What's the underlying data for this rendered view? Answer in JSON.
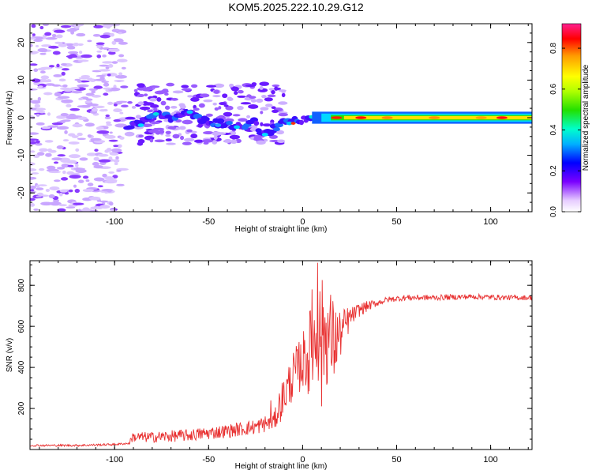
{
  "title": "KOM5.2025.222.10.29.G12",
  "chart_data": [
    {
      "type": "heatmap",
      "xlabel": "Height of straight line (km)",
      "ylabel": "Frequency (Hz)",
      "xlim": [
        -145,
        122
      ],
      "ylim": [
        -25,
        25
      ],
      "xticks": [
        -100,
        -50,
        0,
        50,
        100
      ],
      "yticks": [
        -20,
        -10,
        0,
        10,
        20
      ],
      "colorbar": {
        "label": "Normalized spectral amplitude",
        "range": [
          0,
          0.92
        ],
        "ticks": [
          "0.0",
          "0.2",
          "0.4",
          "0.6",
          "0.8"
        ],
        "tick_values": [
          0,
          0.2,
          0.4,
          0.6,
          0.8
        ]
      },
      "ridge": [
        {
          "x": -93,
          "y": -2
        },
        {
          "x": -85,
          "y": -1
        },
        {
          "x": -78,
          "y": 1
        },
        {
          "x": -70,
          "y": 0
        },
        {
          "x": -62,
          "y": 2
        },
        {
          "x": -55,
          "y": 0
        },
        {
          "x": -50,
          "y": -1
        },
        {
          "x": -45,
          "y": -1.5
        },
        {
          "x": -38,
          "y": -2
        },
        {
          "x": -32,
          "y": -2.5
        },
        {
          "x": -26,
          "y": -1
        },
        {
          "x": -22,
          "y": -4.5
        },
        {
          "x": -18,
          "y": -4
        },
        {
          "x": -13,
          "y": -2
        },
        {
          "x": -8,
          "y": -1
        },
        {
          "x": -2,
          "y": -1
        },
        {
          "x": 3,
          "y": 0
        },
        {
          "x": 10,
          "y": 0
        },
        {
          "x": 20,
          "y": 0
        },
        {
          "x": 40,
          "y": 0
        },
        {
          "x": 70,
          "y": 0
        },
        {
          "x": 100,
          "y": 0
        },
        {
          "x": 122,
          "y": 0
        }
      ]
    },
    {
      "type": "line",
      "xlabel": "Height of straight line (km)",
      "ylabel": "SNR (v/v)",
      "xlim": [
        -145,
        122
      ],
      "ylim": [
        0,
        920
      ],
      "xticks": [
        -100,
        -50,
        0,
        50,
        100
      ],
      "yticks": [
        200,
        400,
        600,
        800
      ],
      "series": [
        {
          "name": "SNR",
          "color": "#e83030",
          "points": [
            [
              -145,
              20
            ],
            [
              -120,
              20
            ],
            [
              -100,
              25
            ],
            [
              -92,
              30
            ],
            [
              -91,
              60
            ],
            [
              -80,
              60
            ],
            [
              -60,
              70
            ],
            [
              -40,
              90
            ],
            [
              -25,
              110
            ],
            [
              -15,
              140
            ],
            [
              -12,
              220
            ],
            [
              -8,
              300
            ],
            [
              -5,
              360
            ],
            [
              -2,
              400
            ],
            [
              0,
              430
            ],
            [
              3,
              470
            ],
            [
              6,
              520
            ],
            [
              8,
              560
            ],
            [
              10,
              580
            ],
            [
              13,
              560
            ],
            [
              16,
              520
            ],
            [
              20,
              560
            ],
            [
              25,
              640
            ],
            [
              30,
              680
            ],
            [
              35,
              700
            ],
            [
              45,
              730
            ],
            [
              55,
              740
            ],
            [
              70,
              740
            ],
            [
              90,
              745
            ],
            [
              110,
              740
            ],
            [
              122,
              740
            ]
          ],
          "noise": [
            [
              -145,
              5
            ],
            [
              -92,
              5
            ],
            [
              -91,
              25
            ],
            [
              -30,
              35
            ],
            [
              -15,
              45
            ],
            [
              -12,
              90
            ],
            [
              0,
              140
            ],
            [
              5,
              220
            ],
            [
              10,
              260
            ],
            [
              15,
              250
            ],
            [
              20,
              120
            ],
            [
              27,
              40
            ],
            [
              40,
              15
            ],
            [
              122,
              12
            ]
          ],
          "spikes": [
            [
              8,
              910
            ],
            [
              10,
              210
            ],
            [
              -17,
              240
            ],
            [
              3,
              270
            ],
            [
              5,
              780
            ]
          ]
        }
      ]
    }
  ]
}
